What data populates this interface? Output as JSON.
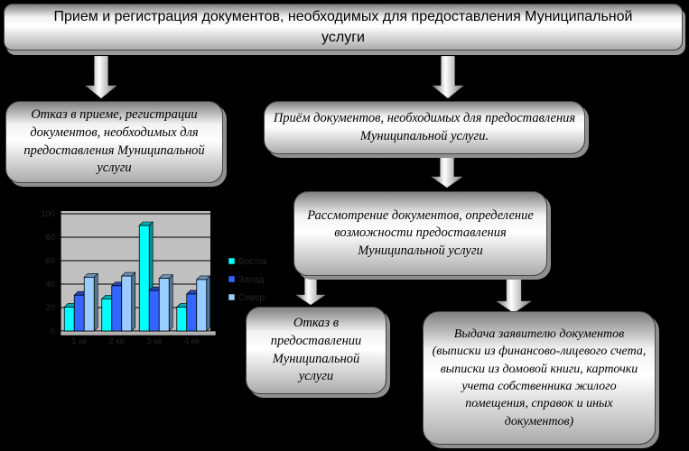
{
  "flowchart": {
    "title": "Прием и регистрация документов, необходимых для предоставления Муниципальной услуги",
    "boxes": {
      "reject_registration": "Отказ в приеме, регистрации документов, необходимых для предоставления Муниципальной услуги",
      "accept_documents": "Приём документов, необходимых для предоставления Муниципальной услуги.",
      "review_documents": "Рассмотрение документов, определение возможности предоставления Муниципальной услуги",
      "reject_service": "Отказ в предоставлении Муниципальной услуги",
      "issue_documents": "Выдача заявителю документов (выписки из финансово-лицевого счета, выписки из домовой книги, карточки учета собственника жилого помещения, справок и иных документов)"
    }
  },
  "chart_data": {
    "type": "bar",
    "title": "",
    "categories": [
      "1 кв",
      "2 кв",
      "3 кв",
      "4 кв"
    ],
    "series": [
      {
        "name": "Восток",
        "color": "#00FFFF",
        "top_color": "#00AEB3",
        "side_color": "#008F94",
        "values": [
          20.4,
          27.4,
          90,
          20.4
        ]
      },
      {
        "name": "Запад",
        "color": "#3366FF",
        "top_color": "#2449B8",
        "side_color": "#1D3B96",
        "values": [
          30.6,
          38.6,
          34.6,
          31.6
        ]
      },
      {
        "name": "Север",
        "color": "#99CCFF",
        "top_color": "#6E93B8",
        "side_color": "#597796",
        "values": [
          45.9,
          46.9,
          45,
          43.9
        ]
      }
    ],
    "ylim": [
      0,
      100
    ],
    "yticks": [
      0,
      20,
      40,
      60,
      80,
      100
    ],
    "grid": true,
    "legend_position": "right",
    "plot_bg": "#C0C0C0",
    "floor_color": "#B2B2B2",
    "label_color": "#262626"
  }
}
